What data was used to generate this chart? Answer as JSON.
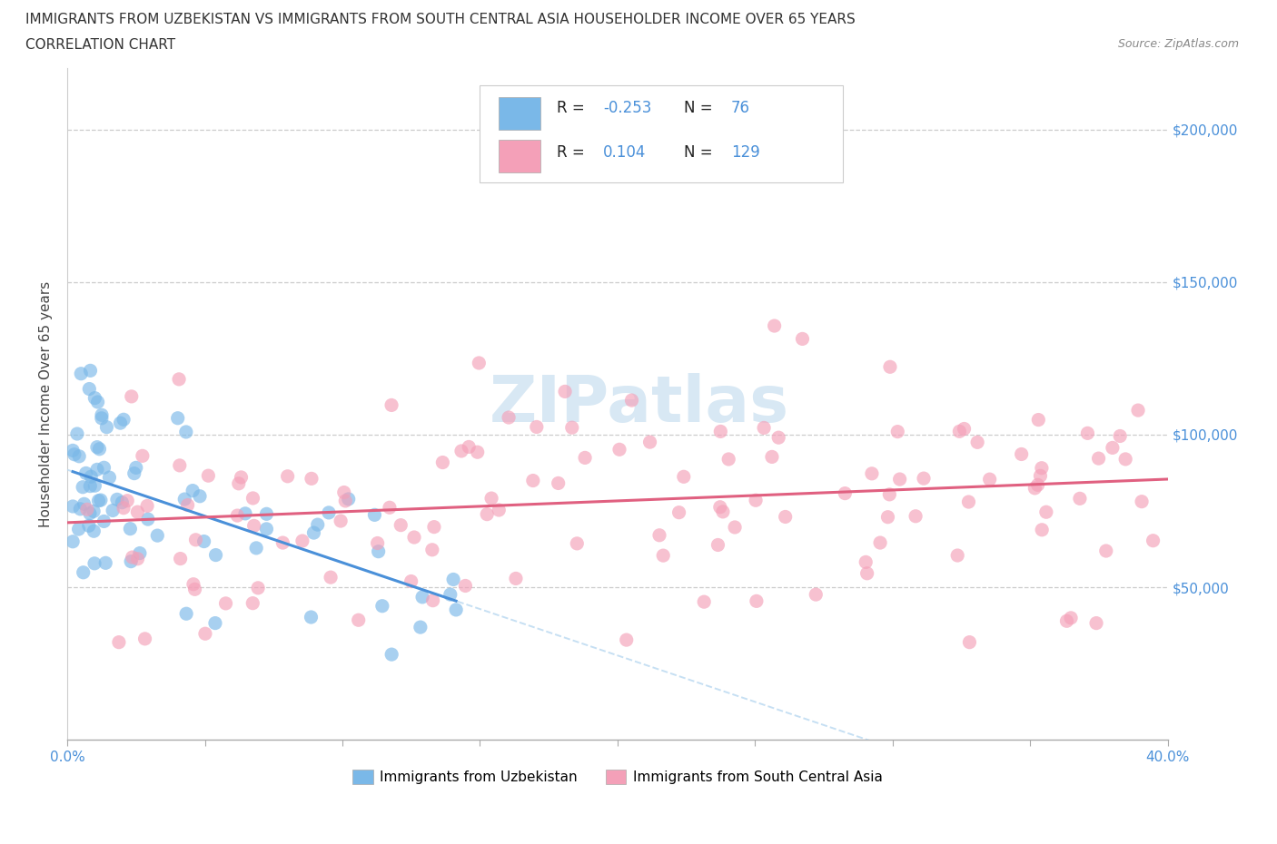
{
  "title_line1": "IMMIGRANTS FROM UZBEKISTAN VS IMMIGRANTS FROM SOUTH CENTRAL ASIA HOUSEHOLDER INCOME OVER 65 YEARS",
  "title_line2": "CORRELATION CHART",
  "source_text": "Source: ZipAtlas.com",
  "ylabel": "Householder Income Over 65 years",
  "xlim": [
    0.0,
    0.4
  ],
  "ylim": [
    0,
    220000
  ],
  "color_uzbek": "#7ab8e8",
  "color_sca": "#f4a0b8",
  "color_uzbek_line": "#4a90d9",
  "color_sca_line": "#e06080",
  "color_uzbek_dash": "#b8d8f0",
  "watermark_color": "#d8e8f4",
  "background_color": "#ffffff",
  "grid_color": "#cccccc",
  "legend_border": "#cccccc",
  "tick_color": "#4a90d9",
  "title_color": "#333333",
  "ylabel_color": "#444444"
}
